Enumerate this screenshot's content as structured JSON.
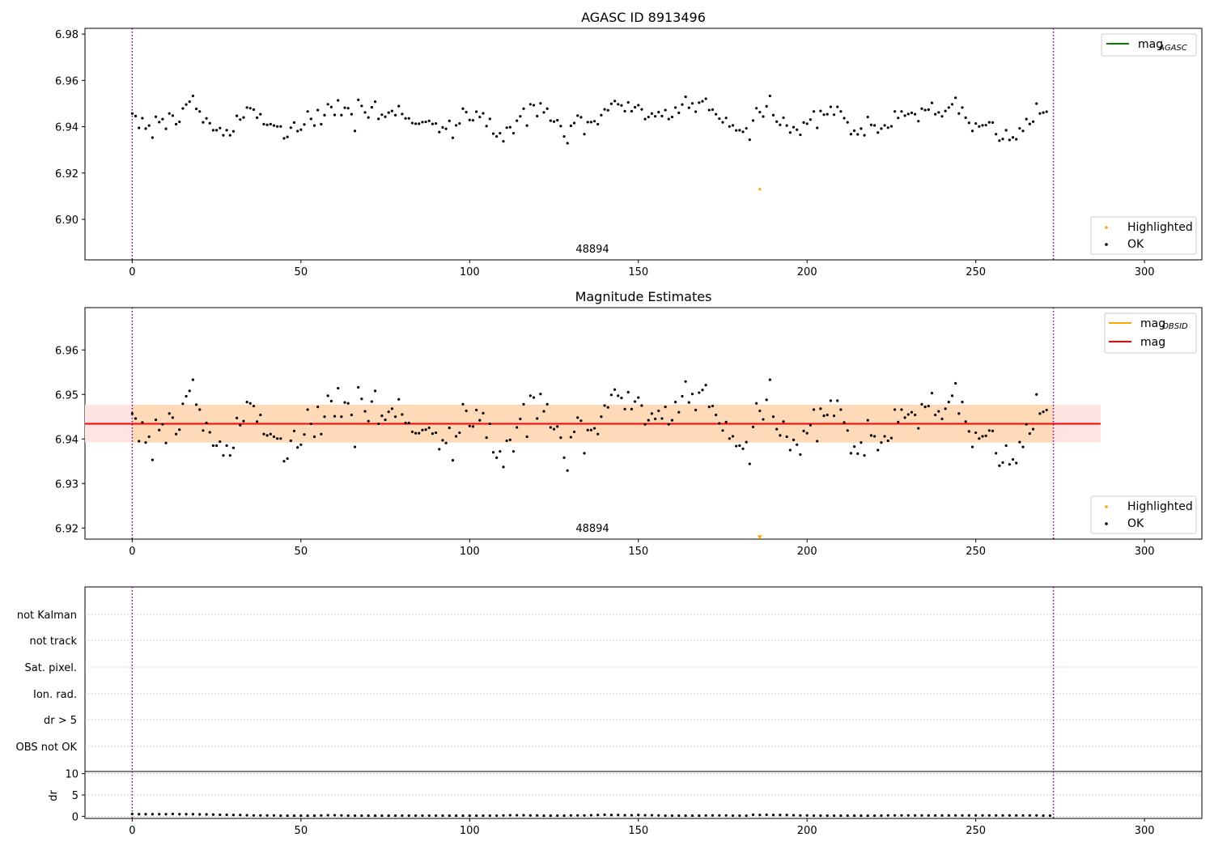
{
  "colors": {
    "ok": "#000000",
    "highlighted": "#ffa500",
    "agasc_line": "#008000",
    "obsid_line": "#ffa500",
    "mag_line": "#ff0000",
    "obsid_band": "#ffdab9",
    "mag_band": "#ffe4e1",
    "vline": "#800080"
  },
  "chart_data": [
    {
      "type": "scatter",
      "title": "AGASC ID 8913496",
      "xlim": [
        -14,
        317
      ],
      "ylim": [
        6.8825,
        6.9825
      ],
      "xticks": [
        0,
        50,
        100,
        150,
        200,
        250,
        300
      ],
      "yticks": [
        6.9,
        6.92,
        6.94,
        6.96,
        6.98
      ],
      "ytick_labels": [
        "6.90",
        "6.92",
        "6.94",
        "6.96",
        "6.98"
      ],
      "obsid_text": "48894",
      "obsid_text_x": 134,
      "vlines": [
        0,
        273
      ],
      "legend_upper": [
        {
          "label": "mag",
          "sub": "AGASC",
          "kind": "line",
          "color": "#008000"
        }
      ],
      "legend_lower": [
        {
          "label": "Highlighted",
          "kind": "dot",
          "color": "#ffa500"
        },
        {
          "label": "OK",
          "kind": "dot",
          "color": "#000000"
        }
      ],
      "series": [
        {
          "name": "OK",
          "kind": "dots",
          "color": "#000000",
          "source": "mag_points"
        },
        {
          "name": "Highlighted",
          "kind": "dots",
          "color": "#ffa500",
          "points": [
            [
              186,
              6.913
            ]
          ]
        }
      ]
    },
    {
      "type": "scatter",
      "title": "Magnitude Estimates",
      "xlim": [
        -14,
        317
      ],
      "ylim": [
        6.9175,
        6.9695
      ],
      "xticks": [
        0,
        50,
        100,
        150,
        200,
        250,
        300
      ],
      "yticks": [
        6.92,
        6.93,
        6.94,
        6.95,
        6.96
      ],
      "ytick_labels": [
        "6.92",
        "6.93",
        "6.94",
        "6.95",
        "6.96"
      ],
      "obsid_text": "48894",
      "obsid_text_x": 134,
      "vlines": [
        0,
        273
      ],
      "mag_mean": 6.9434,
      "band_x": [
        -14,
        287
      ],
      "obsid_band": [
        6.9392,
        6.9477
      ],
      "mag_band": [
        6.9392,
        6.9477
      ],
      "legend_upper": [
        {
          "label": "mag",
          "sub": "OBSID",
          "kind": "line",
          "color": "#ffa500"
        },
        {
          "label": "mag",
          "sub": "",
          "kind": "line",
          "color": "#ff0000"
        }
      ],
      "legend_lower": [
        {
          "label": "Highlighted",
          "kind": "dot",
          "color": "#ffa500"
        },
        {
          "label": "OK",
          "kind": "dot",
          "color": "#000000"
        }
      ],
      "series": [
        {
          "name": "OK",
          "kind": "dots",
          "color": "#000000",
          "source": "mag_points"
        },
        {
          "name": "Highlighted",
          "kind": "triangle",
          "color": "#ffa500",
          "points": [
            [
              186,
              6.918
            ]
          ]
        }
      ]
    },
    {
      "type": "table",
      "flag_labels": [
        "not Kalman",
        "not track",
        "Sat. pixel.",
        "Ion. rad.",
        "dr > 5",
        "OBS not OK"
      ],
      "xlim": [
        -14,
        317
      ],
      "vlines": [
        0,
        273
      ]
    },
    {
      "type": "scatter",
      "ylabel": "dr",
      "xlim": [
        -14,
        317
      ],
      "ylim": [
        -0.5,
        10.5
      ],
      "xticks": [
        0,
        50,
        100,
        150,
        200,
        250,
        300
      ],
      "yticks": [
        0,
        5,
        10
      ],
      "ytick_labels": [
        "0",
        "5",
        "10"
      ],
      "vlines": [
        0,
        273
      ],
      "series": [
        {
          "name": "dr",
          "kind": "dots",
          "color": "#000000",
          "source": "dr_points"
        }
      ]
    }
  ],
  "mag_points": [
    [
      0,
      6.9457
    ],
    [
      1,
      6.9446
    ],
    [
      2,
      6.9395
    ],
    [
      3,
      6.9437
    ],
    [
      4,
      6.9392
    ],
    [
      5,
      6.9405
    ],
    [
      6,
      6.9353
    ],
    [
      7,
      6.9443
    ],
    [
      8,
      6.942
    ],
    [
      9,
      6.9433
    ],
    [
      10,
      6.9391
    ],
    [
      11,
      6.9457
    ],
    [
      12,
      6.9448
    ],
    [
      13,
      6.9411
    ],
    [
      14,
      6.9421
    ],
    [
      15,
      6.9479
    ],
    [
      16,
      6.9496
    ],
    [
      17,
      6.9508
    ],
    [
      18,
      6.9533
    ],
    [
      19,
      6.9477
    ],
    [
      20,
      6.9466
    ],
    [
      21,
      6.9419
    ],
    [
      22,
      6.9436
    ],
    [
      23,
      6.9415
    ],
    [
      24,
      6.9385
    ],
    [
      25,
      6.9385
    ],
    [
      26,
      6.9394
    ],
    [
      27,
      6.9363
    ],
    [
      28,
      6.9385
    ],
    [
      29,
      6.9363
    ],
    [
      30,
      6.938
    ],
    [
      31,
      6.9447
    ],
    [
      32,
      6.9431
    ],
    [
      33,
      6.944
    ],
    [
      34,
      6.9483
    ],
    [
      35,
      6.948
    ],
    [
      36,
      6.9474
    ],
    [
      37,
      6.9439
    ],
    [
      38,
      6.9454
    ],
    [
      39,
      6.9411
    ],
    [
      40,
      6.9408
    ],
    [
      41,
      6.9411
    ],
    [
      42,
      6.9405
    ],
    [
      43,
      6.9401
    ],
    [
      44,
      6.9401
    ],
    [
      45,
      6.935
    ],
    [
      46,
      6.9356
    ],
    [
      47,
      6.9396
    ],
    [
      48,
      6.9418
    ],
    [
      49,
      6.9381
    ],
    [
      50,
      6.9387
    ],
    [
      51,
      6.941
    ],
    [
      52,
      6.9466
    ],
    [
      53,
      6.9434
    ],
    [
      54,
      6.9405
    ],
    [
      55,
      6.9472
    ],
    [
      56,
      6.9411
    ],
    [
      57,
      6.945
    ],
    [
      58,
      6.9497
    ],
    [
      59,
      6.9485
    ],
    [
      60,
      6.9451
    ],
    [
      61,
      6.9514
    ],
    [
      62,
      6.945
    ],
    [
      63,
      6.9482
    ],
    [
      64,
      6.948
    ],
    [
      65,
      6.9454
    ],
    [
      66,
      6.9382
    ],
    [
      67,
      6.9516
    ],
    [
      68,
      6.949
    ],
    [
      69,
      6.9462
    ],
    [
      70,
      6.944
    ],
    [
      71,
      6.9484
    ],
    [
      72,
      6.9508
    ],
    [
      73,
      6.9434
    ],
    [
      74,
      6.9452
    ],
    [
      75,
      6.9443
    ],
    [
      76,
      6.9461
    ],
    [
      77,
      6.9468
    ],
    [
      78,
      6.945
    ],
    [
      79,
      6.9489
    ],
    [
      80,
      6.9455
    ],
    [
      81,
      6.9436
    ],
    [
      82,
      6.9436
    ],
    [
      83,
      6.9416
    ],
    [
      84,
      6.9413
    ],
    [
      85,
      6.9413
    ],
    [
      86,
      6.942
    ],
    [
      87,
      6.9421
    ],
    [
      88,
      6.9425
    ],
    [
      89,
      6.9412
    ],
    [
      90,
      6.9414
    ],
    [
      91,
      6.9377
    ],
    [
      92,
      6.9397
    ],
    [
      93,
      6.9391
    ],
    [
      94,
      6.9425
    ],
    [
      95,
      6.9352
    ],
    [
      96,
      6.9406
    ],
    [
      97,
      6.9414
    ],
    [
      98,
      6.9478
    ],
    [
      99,
      6.9463
    ],
    [
      100,
      6.9429
    ],
    [
      101,
      6.9428
    ],
    [
      102,
      6.9465
    ],
    [
      103,
      6.9442
    ],
    [
      104,
      6.9458
    ],
    [
      105,
      6.9403
    ],
    [
      106,
      6.9434
    ],
    [
      107,
      6.937
    ],
    [
      108,
      6.9358
    ],
    [
      109,
      6.9372
    ],
    [
      110,
      6.9337
    ],
    [
      111,
      6.9396
    ],
    [
      112,
      6.9398
    ],
    [
      113,
      6.9372
    ],
    [
      114,
      6.9426
    ],
    [
      115,
      6.9445
    ],
    [
      116,
      6.9478
    ],
    [
      117,
      6.9405
    ],
    [
      118,
      6.9497
    ],
    [
      119,
      6.9493
    ],
    [
      120,
      6.9446
    ],
    [
      121,
      6.9501
    ],
    [
      122,
      6.9462
    ],
    [
      123,
      6.9478
    ],
    [
      124,
      6.9426
    ],
    [
      125,
      6.9422
    ],
    [
      126,
      6.9428
    ],
    [
      127,
      6.9403
    ],
    [
      128,
      6.9358
    ],
    [
      129,
      6.9329
    ],
    [
      130,
      6.9404
    ],
    [
      131,
      6.9416
    ],
    [
      132,
      6.9448
    ],
    [
      133,
      6.9441
    ],
    [
      134,
      6.9368
    ],
    [
      135,
      6.942
    ],
    [
      136,
      6.942
    ],
    [
      137,
      6.9424
    ],
    [
      138,
      6.9411
    ],
    [
      139,
      6.945
    ],
    [
      140,
      6.9475
    ],
    [
      141,
      6.9471
    ],
    [
      142,
      6.9499
    ],
    [
      143,
      6.9511
    ],
    [
      144,
      6.9497
    ],
    [
      145,
      6.9492
    ],
    [
      146,
      6.9467
    ],
    [
      147,
      6.9505
    ],
    [
      148,
      6.9467
    ],
    [
      149,
      6.9484
    ],
    [
      150,
      6.9493
    ],
    [
      151,
      6.9475
    ],
    [
      152,
      6.9433
    ],
    [
      153,
      6.9442
    ],
    [
      154,
      6.9457
    ],
    [
      155,
      6.9445
    ],
    [
      156,
      6.9463
    ],
    [
      157,
      6.9446
    ],
    [
      158,
      6.9472
    ],
    [
      159,
      6.9433
    ],
    [
      160,
      6.9442
    ],
    [
      161,
      6.9483
    ],
    [
      162,
      6.946
    ],
    [
      163,
      6.9496
    ],
    [
      164,
      6.9529
    ],
    [
      165,
      6.9482
    ],
    [
      166,
      6.9501
    ],
    [
      167,
      6.9465
    ],
    [
      168,
      6.9504
    ],
    [
      169,
      6.951
    ],
    [
      170,
      6.9521
    ],
    [
      171,
      6.9472
    ],
    [
      172,
      6.9474
    ],
    [
      173,
      6.9454
    ],
    [
      174,
      6.9435
    ],
    [
      175,
      6.9419
    ],
    [
      176,
      6.9438
    ],
    [
      177,
      6.9401
    ],
    [
      178,
      6.9406
    ],
    [
      179,
      6.9384
    ],
    [
      180,
      6.9385
    ],
    [
      181,
      6.9378
    ],
    [
      182,
      6.9393
    ],
    [
      183,
      6.9344
    ],
    [
      184,
      6.9427
    ],
    [
      185,
      6.948
    ],
    [
      186,
      6.9463
    ],
    [
      187,
      6.9444
    ],
    [
      188,
      6.9488
    ],
    [
      189,
      6.9533
    ],
    [
      190,
      6.945
    ],
    [
      191,
      6.9422
    ],
    [
      192,
      6.9408
    ],
    [
      193,
      6.9439
    ],
    [
      194,
      6.9405
    ],
    [
      195,
      6.9375
    ],
    [
      196,
      6.9398
    ],
    [
      197,
      6.9387
    ],
    [
      198,
      6.9365
    ],
    [
      199,
      6.9418
    ],
    [
      200,
      6.9413
    ],
    [
      201,
      6.9431
    ],
    [
      202,
      6.9466
    ],
    [
      203,
      6.9395
    ],
    [
      204,
      6.9468
    ],
    [
      205,
      6.9452
    ],
    [
      206,
      6.9454
    ],
    [
      207,
      6.9486
    ],
    [
      208,
      6.9452
    ],
    [
      209,
      6.9486
    ],
    [
      210,
      6.9466
    ],
    [
      211,
      6.9437
    ],
    [
      212,
      6.9419
    ],
    [
      213,
      6.9368
    ],
    [
      214,
      6.9383
    ],
    [
      215,
      6.9367
    ],
    [
      216,
      6.9392
    ],
    [
      217,
      6.9363
    ],
    [
      218,
      6.9442
    ],
    [
      219,
      6.9408
    ],
    [
      220,
      6.9406
    ],
    [
      221,
      6.9375
    ],
    [
      222,
      6.9392
    ],
    [
      223,
      6.9406
    ],
    [
      224,
      6.9396
    ],
    [
      225,
      6.9402
    ],
    [
      226,
      6.9466
    ],
    [
      227,
      6.9438
    ],
    [
      228,
      6.9466
    ],
    [
      229,
      6.9448
    ],
    [
      230,
      6.9455
    ],
    [
      231,
      6.946
    ],
    [
      232,
      6.9454
    ],
    [
      233,
      6.9424
    ],
    [
      234,
      6.9478
    ],
    [
      235,
      6.9472
    ],
    [
      236,
      6.9474
    ],
    [
      237,
      6.9503
    ],
    [
      238,
      6.9454
    ],
    [
      239,
      6.9462
    ],
    [
      240,
      6.9445
    ],
    [
      241,
      6.9468
    ],
    [
      242,
      6.9483
    ],
    [
      243,
      6.9497
    ],
    [
      244,
      6.9525
    ],
    [
      245,
      6.9457
    ],
    [
      246,
      6.9483
    ],
    [
      247,
      6.9439
    ],
    [
      248,
      6.9417
    ],
    [
      249,
      6.9382
    ],
    [
      250,
      6.9414
    ],
    [
      251,
      6.9401
    ],
    [
      252,
      6.9406
    ],
    [
      253,
      6.9407
    ],
    [
      254,
      6.9419
    ],
    [
      255,
      6.9418
    ],
    [
      256,
      6.9368
    ],
    [
      257,
      6.934
    ],
    [
      258,
      6.9347
    ],
    [
      259,
      6.9385
    ],
    [
      260,
      6.9343
    ],
    [
      261,
      6.9354
    ],
    [
      262,
      6.9346
    ],
    [
      263,
      6.9393
    ],
    [
      264,
      6.9382
    ],
    [
      265,
      6.9433
    ],
    [
      266,
      6.9412
    ],
    [
      267,
      6.9422
    ],
    [
      268,
      6.95
    ],
    [
      269,
      6.9457
    ],
    [
      270,
      6.9461
    ],
    [
      271,
      6.9465
    ]
  ],
  "dr_points": [
    [
      0,
      0.55
    ],
    [
      2,
      0.5
    ],
    [
      4,
      0.5
    ],
    [
      6,
      0.5
    ],
    [
      8,
      0.5
    ],
    [
      10,
      0.5
    ],
    [
      12,
      0.55
    ],
    [
      14,
      0.5
    ],
    [
      16,
      0.5
    ],
    [
      18,
      0.5
    ],
    [
      20,
      0.45
    ],
    [
      22,
      0.45
    ],
    [
      24,
      0.4
    ],
    [
      26,
      0.35
    ],
    [
      28,
      0.35
    ],
    [
      30,
      0.3
    ],
    [
      32,
      0.3
    ],
    [
      34,
      0.25
    ],
    [
      36,
      0.2
    ],
    [
      38,
      0.2
    ],
    [
      40,
      0.2
    ],
    [
      42,
      0.2
    ],
    [
      44,
      0.15
    ],
    [
      46,
      0.15
    ],
    [
      48,
      0.15
    ],
    [
      50,
      0.15
    ],
    [
      52,
      0.15
    ],
    [
      54,
      0.15
    ],
    [
      56,
      0.2
    ],
    [
      58,
      0.25
    ],
    [
      60,
      0.25
    ],
    [
      62,
      0.2
    ],
    [
      64,
      0.15
    ],
    [
      66,
      0.15
    ],
    [
      68,
      0.15
    ],
    [
      70,
      0.15
    ],
    [
      72,
      0.15
    ],
    [
      74,
      0.15
    ],
    [
      76,
      0.15
    ],
    [
      78,
      0.15
    ],
    [
      80,
      0.15
    ],
    [
      82,
      0.15
    ],
    [
      84,
      0.15
    ],
    [
      86,
      0.15
    ],
    [
      88,
      0.15
    ],
    [
      90,
      0.15
    ],
    [
      92,
      0.15
    ],
    [
      94,
      0.15
    ],
    [
      96,
      0.15
    ],
    [
      98,
      0.15
    ],
    [
      100,
      0.15
    ],
    [
      102,
      0.15
    ],
    [
      104,
      0.15
    ],
    [
      106,
      0.15
    ],
    [
      108,
      0.15
    ],
    [
      110,
      0.2
    ],
    [
      112,
      0.25
    ],
    [
      114,
      0.25
    ],
    [
      116,
      0.25
    ],
    [
      118,
      0.2
    ],
    [
      120,
      0.2
    ],
    [
      122,
      0.15
    ],
    [
      124,
      0.15
    ],
    [
      126,
      0.15
    ],
    [
      128,
      0.15
    ],
    [
      130,
      0.2
    ],
    [
      132,
      0.2
    ],
    [
      134,
      0.2
    ],
    [
      136,
      0.25
    ],
    [
      138,
      0.3
    ],
    [
      140,
      0.35
    ],
    [
      142,
      0.3
    ],
    [
      144,
      0.3
    ],
    [
      146,
      0.25
    ],
    [
      148,
      0.25
    ],
    [
      150,
      0.3
    ],
    [
      152,
      0.25
    ],
    [
      154,
      0.25
    ],
    [
      156,
      0.2
    ],
    [
      158,
      0.15
    ],
    [
      160,
      0.15
    ],
    [
      162,
      0.15
    ],
    [
      164,
      0.15
    ],
    [
      166,
      0.15
    ],
    [
      168,
      0.15
    ],
    [
      170,
      0.2
    ],
    [
      172,
      0.2
    ],
    [
      174,
      0.2
    ],
    [
      176,
      0.2
    ],
    [
      178,
      0.15
    ],
    [
      180,
      0.15
    ],
    [
      182,
      0.15
    ],
    [
      184,
      0.35
    ],
    [
      186,
      0.3
    ],
    [
      188,
      0.35
    ],
    [
      190,
      0.3
    ],
    [
      192,
      0.3
    ],
    [
      194,
      0.3
    ],
    [
      196,
      0.25
    ],
    [
      198,
      0.2
    ],
    [
      200,
      0.2
    ],
    [
      202,
      0.15
    ],
    [
      204,
      0.15
    ],
    [
      206,
      0.15
    ],
    [
      208,
      0.15
    ],
    [
      210,
      0.15
    ],
    [
      212,
      0.15
    ],
    [
      214,
      0.15
    ],
    [
      216,
      0.15
    ],
    [
      218,
      0.15
    ],
    [
      220,
      0.15
    ],
    [
      222,
      0.15
    ],
    [
      224,
      0.2
    ],
    [
      226,
      0.2
    ],
    [
      228,
      0.2
    ],
    [
      230,
      0.2
    ],
    [
      232,
      0.2
    ],
    [
      234,
      0.2
    ],
    [
      236,
      0.2
    ],
    [
      238,
      0.2
    ],
    [
      240,
      0.2
    ],
    [
      242,
      0.2
    ],
    [
      244,
      0.2
    ],
    [
      246,
      0.2
    ],
    [
      248,
      0.2
    ],
    [
      250,
      0.2
    ],
    [
      252,
      0.2
    ],
    [
      254,
      0.2
    ],
    [
      256,
      0.2
    ],
    [
      258,
      0.2
    ],
    [
      260,
      0.2
    ],
    [
      262,
      0.2
    ],
    [
      264,
      0.2
    ],
    [
      266,
      0.2
    ],
    [
      268,
      0.2
    ],
    [
      270,
      0.15
    ],
    [
      272,
      0.15
    ]
  ]
}
